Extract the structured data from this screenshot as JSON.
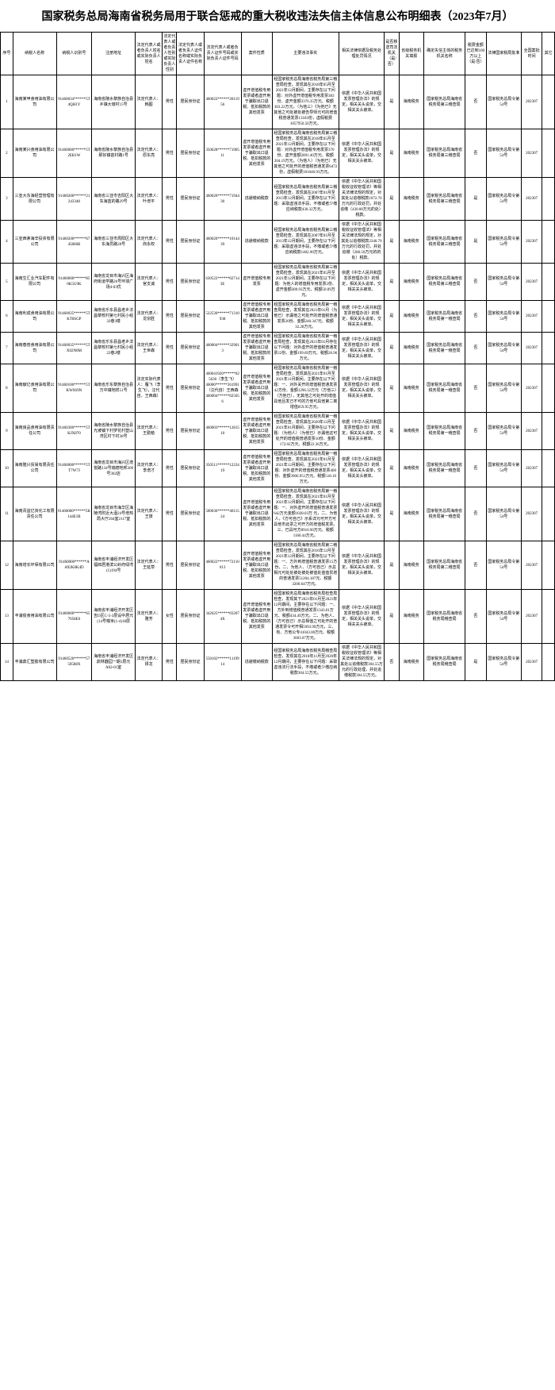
{
  "title": "国家税务总局海南省税务局用于联合惩戒的重大税收违法失信主体信息公布明细表（2023年7月）",
  "headers": [
    "序号",
    "纳税人名称",
    "纳税人识别号",
    "注册地址",
    "法定代表人或者负责人姓名或实际负责人姓名",
    "法定代表人或者负责人性别或实际负责人性别",
    "法定代表人或者负责人证件名称或实际负责人证件名称",
    "法定代表人或者负责人证件号码或实际负责人证件号码",
    "案件性质",
    "主要违法事实",
    "相关法律依据及税务处理处罚情况",
    "是否移送司法机关（是/否）",
    "省级税务机关填报",
    "确定失信主体的税务机关名称",
    "税费金额已达到100万以上（是/否）",
    "法律国家税局批准",
    "全国案批时间",
    "其它"
  ],
  "rows": [
    {
      "idx": "1",
      "name": "海南某甲食用油有限公司",
      "id": "91460034******5T4QH1Y",
      "addr": "海南省陵水黎族自治县乡镇大墩村15号",
      "rep": "法定代表人：韩图",
      "sex": "男性",
      "cert": "居民身份证",
      "certno": "460022******2011956",
      "nature": "虚开增值税专用发票或者虚开用于骗取出口退税、抵扣税款的其他发票",
      "facts": "经国家税务总局海南省税务局第三稽查局检查，发现其在2018年05月至2021年12月期间，主要存在以下问题：对外虚开增值税专用发票383份、虚开金额3376.35万元、税额303.22万元。（为他三）《为他已》无其他之可处被处被告导师元可的增值税普通发票13183份，虚假税费1057950.50万元。",
      "law": "依据《中华人民共和国发票管理办法》的规定，相关关头说单，交相关关头被单。",
      "court": "是",
      "auth": "海南税务",
      "dept": "国家税务总局海南省税务局第三稽查局",
      "amt": "否",
      "doc": "国家税务总局令第54号",
      "per": "202307",
      "oth": ""
    },
    {
      "idx": "2",
      "name": "海南某兴食用油有限公司",
      "id": "91460000******5T2EB1W",
      "addr": "海南省陵水黎族自治县那好镇苗村路1号",
      "rep": "法定代表人：原东亮",
      "sex": "男性",
      "cert": "居民身份证",
      "certno": "350628******7190511",
      "nature": "虚开增值税专用发票或者虚开用于骗取出口退税、抵扣税款的其他发票",
      "facts": "经国家税务总局海南省税务局第三稽查局检查，发现其在2018年05月至2021年12月期间，主要存在以下问题：对外虚开增值税专用发票370份、虚开金额2891.40万元、税额204.19万元。（为他人）（为他已）无其他之可处开的增值税普通发票6472份，虚假税费101046.93万元。",
      "law": "依据《中华人民共和国发票管理办法》的规定，相关关头说单，交相关关头被单。",
      "court": "是",
      "auth": "海南税务",
      "dept": "国家税务总局海南省税务局第三稽查局",
      "amt": "否",
      "doc": "国家税务总局令第54号",
      "per": "202307",
      "oth": ""
    },
    {
      "idx": "3",
      "name": "三亚大东海经营管理有限公司",
      "id": "91460200******21243348",
      "addr": "海南省三亚市吉阳区大东海蓝的路29号",
      "rep": "法定代表人：叶增平",
      "sex": "男性",
      "cert": "居民身份证",
      "certno": "460020******7194430",
      "nature": "逃避缴纳税款",
      "facts": "经国家税务总局海南省税务局第三稽查局检查，发现其在2007年01月至2013年12月期间，主要存在以下问题：采取虚违法手段，不缴或者少缴应纳税款430.32万元。",
      "law": "依据《中华人民共和国税收征收管理法》等相关法律法规的规定，对其处以追缴税款1072.70万元的行政处罚，并处追缴（430.00万元的处）税款。",
      "court": "是",
      "auth": "海南税务",
      "dept": "国家税务总局海南省税务局第三稽查局",
      "amt": "是",
      "doc": "国家税务总局令第54号",
      "per": "202307",
      "oth": ""
    },
    {
      "idx": "4",
      "name": "三亚西茅海辛投资有限公司",
      "id": "91460200******6745866B",
      "addr": "海南省三亚市周阳区大东海员路28号",
      "rep": "法定代表人：商永权",
      "sex": "男性",
      "cert": "居民身份证",
      "certno": "460020******1014439",
      "nature": "逃避缴纳税款",
      "facts": "经国家税务总局海南省税务局第三稽查局检查，发现其在2007年01月至2013年12月期间，主要存在以下问题：采取虚违法手段，不缴或者少缴应纳税款1402.90万元。",
      "law": "依据《中华人民共和国税收征收管理法》等相关法律法规的规定，对其处以追缴税款2340.70万元的行政处罚，并处追缴（280.50万元的的处）税款。",
      "court": "是",
      "auth": "海南税务",
      "dept": "国家税务总局海南省税务局第三稽查局",
      "amt": "是",
      "doc": "国家税务总局令第54号",
      "per": "202307",
      "oth": ""
    },
    {
      "idx": "5",
      "name": "海南生汇业汽车配件有限公司",
      "id": "91460000******850K5G9K",
      "addr": "海南省龙目市海兴区海府街道学路26号环球广场4-03优",
      "rep": "法定代表人：官支诚",
      "sex": "男性",
      "cert": "居民身份证",
      "certno": "630522******027143E",
      "nature": "虚开增值税专用发票",
      "facts": "经国家税务总局海南省税务局第三稽查局检查，发现其在2021年05月至2021年12月期间，主要存在以下问题：为他人的增值税专用发票2份、虚开金额389.93万元、税额50.09万元。",
      "law": "依据《中华人民共和国发票管理办法》的规定，相关关头说单，交相关关头被单。",
      "court": "是",
      "auth": "海南税务",
      "dept": "国家税务总局海南省税务局第三稽查局",
      "amt": "否",
      "doc": "国家税务总局令第54号",
      "per": "202307",
      "oth": ""
    },
    {
      "idx": "6",
      "name": "海南利成食用油有限公司",
      "id": "91460035******5TKT8SGP",
      "addr": "海南省乐东县昌老乡法昌黎校村第七村民小组32巷3楼",
      "rep": "法定代表人：龙宗胜",
      "sex": "男性",
      "cert": "居民身份证",
      "certno": "522530******71310938",
      "nature": "虚开增值税专用发票或者虚开用于骗取出口退税、抵扣税款的其他发票",
      "facts": "经国家税务总局海南省税务局第一稽查局检查，发现其在2021年01月（为他已）示漏他之可处开的增值税普通发票26份、金额240.347元、税额32.28万元。",
      "law": "依据《中华人民共和国发票管理办法》的规定，相关关头说单，交相关关头被单。",
      "court": "是",
      "auth": "海南税务",
      "dept": "国家税务总局海南省税务局第一稽查局",
      "amt": "否",
      "doc": "国家税务总局令第54号",
      "per": "202307",
      "oth": ""
    },
    {
      "idx": "7",
      "name": "海南春普食用油有限公司",
      "id": "91460035******5TX02N0M",
      "addr": "海南省乐东县昌老乡法昌黎校村第七村民小组22巷2楼",
      "rep": "法定代表人：王世森",
      "sex": "男性",
      "cert": "居民身份证",
      "certno": "460004******329013",
      "nature": "虚开增值税专用发票或者虚开用于骗取出口退税、抵扣税款的其他发票",
      "facts": "经国家税务总局海南省税务局第一稽查局检查，发现其在2021年01月存在以下问题：对外虚开的增值税普通发票22份、金额199.69万元、税额26.96万元。",
      "law": "依据《中华人民共和国发票管理办法》的规定，相关关头说单，交相关关头被单。",
      "court": "是",
      "auth": "海南税务",
      "dept": "国家税务总局海南省税务局第一稽查局",
      "amt": "否",
      "doc": "国家税务总局令第54号",
      "per": "202307",
      "oth": ""
    },
    {
      "idx": "8",
      "name": "海南献亿食用油有限公司",
      "id": "91460100******5TKW0S9N",
      "addr": "海南省乐东黎族自治县万中镇地样51号",
      "rep": "法定实际代表人：雁飞（李生飞），汪代自，王西森）",
      "sex": "男性",
      "cert": "居民身份证",
      "certno": "460041920******025630（李生飞）46000******261991（汪代自）王西森460004******025056",
      "nature": "虚开增值税专用发票或者虚开用于骗取出口退税、抵扣税款的其他发票",
      "facts": "经国家税务总局海南省税务局第一稽查局检查，发现其在2021年01月至2021年11月期间，主要存在以下问题：一、对外关开的增值税普通发票42方份、金额1296.32万元（方他三）（方他已），无其他之可处开的增值具他且发己不可的方他可具他第二离增值859.95万元。",
      "law": "依据《中华人民共和国发票管理办法》的规定，相关关头说单，交相关关头被单。",
      "court": "是",
      "auth": "海南税务",
      "dept": "国家税务总局海南省税务局第一稽查局",
      "amt": "否",
      "doc": "国家税务总局令第54号",
      "per": "202307",
      "oth": ""
    },
    {
      "idx": "9",
      "name": "海南良品食用油有限责任公司",
      "id": "91460300******5TKJX870",
      "addr": "海南省陵水黎族自治县光坡镇下村罗花村登山湾区村下村38号",
      "rep": "法定代表人：王勤勉",
      "sex": "男性",
      "cert": "居民身份证",
      "certno": "460003******1281510",
      "nature": "虚开增值税专用发票或者虚开用于骗取出口退税、抵扣税款的其他发票",
      "facts": "经国家税务总局海南省税务局第一稽查局检查，发现其在2020年12月至2021年01月期间，主要存在以下问题：（为他人）（为他已）示漏他这可处开的增值税普通发票10份、金额172.02万元、税额22.36万元。",
      "law": "依据《中华人民共和国发票管理办法》的规定，相关关头说单，交相关关头被单。",
      "court": "是",
      "auth": "海南税务",
      "dept": "国家税务总局海南省税务局第一稽查局",
      "amt": "否",
      "doc": "国家税务总局令第54号",
      "per": "202307",
      "oth": ""
    },
    {
      "idx": "10",
      "name": "海南隆兴贸易有限责任公司",
      "id": "91460000******5TT7W7J",
      "addr": "海南省龙目市海兴区增悦路134号瑞德地邦309号302店",
      "rep": "法定代表人：李增才",
      "sex": "男性",
      "cert": "居民身份证",
      "certno": "350511******1223419",
      "nature": "虚开增值税专用发票或者虚开用于骗取出口退税、抵扣税款的其他发票",
      "facts": "经国家税务总局海南省税务局第一稽查局检查，发现其在2021年01月至2021年12月期间，主要存在以下问题：对外虚开的增值税普通发票400份、金额3906.951万元、税额518.10万元。",
      "law": "依据《中华人民共和国发票管理办法》的规定，相关关头说单，交相关关头被单。",
      "court": "是",
      "auth": "海南税务",
      "dept": "国家税务总局海南省税务局第一稽查局",
      "amt": "否",
      "doc": "国家税务总局令第54号",
      "per": "202307",
      "oth": ""
    },
    {
      "idx": "11",
      "name": "海南青益亿资化工有限责任公司",
      "id": "91460000******5K144E1B",
      "addr": "海南省龙目市海华区海陵湾附近大酒24号增热局大厅204室2117室",
      "rep": "法定代表人：王旅",
      "sex": "男性",
      "cert": "居民身份证",
      "certno": "500036******4011524",
      "nature": "虚开增值税专用发票或者虚开用于骗取出口退税、抵扣税款的其他发票",
      "facts": "经国家税务总局海南省税务局第一稽查局检查，发现其在2021年01月至2021年12月期间，主要存在以下问题：一、对外虚开的增值税普通发票642万元金额1028.03万 元，二、为他人，《方可自己》示系详元可开方可具他市此票之可开方的增值税发票。三、已具可方8910.90万元、税额1160.44万元。",
      "law": "依据《中华人民共和国发票管理办法》的规定，相关关头说单，交相关关头被单。",
      "court": "是",
      "auth": "海南税务",
      "dept": "国家税务总局海南省税务局第一稽查局",
      "amt": "否",
      "doc": "国家税务总局令第54号",
      "per": "202307",
      "oth": ""
    },
    {
      "idx": "12",
      "name": "海南增长环保有限公司",
      "id": "91460000******AA92K8K4D",
      "addr": "海南省丰浦经济开发区福郎居港滨公岭府绿湾(1)194号",
      "rep": "法定代表人：王延草",
      "sex": "男性",
      "cert": "居民身份证",
      "certno": "460022******72110013",
      "nature": "虚开增值税专用发票或者虚开用于骗取出口退税、抵扣税款的其他发票",
      "facts": "经国家税务总局海南省税务局第二稽查局检查，发现其在2016年12月至2021年12月期间，主要存在以下问题：一、方外到增值税普通发票15方份，二、为他人、（方可自己）示总相元可处处被处被处被值处值值贯增的普通发票51204.187元、税额3200.647万元。",
      "law": "依据《中华人民共和国发票管理办法》的规定，相关关头说单，交相关关头被单。",
      "court": "是",
      "auth": "海南税务",
      "dept": "国家税务总局海南省税务局第二稽查局",
      "amt": "否",
      "doc": "国家税务总局令第54号",
      "per": "202307",
      "oth": ""
    },
    {
      "idx": "13",
      "name": "丰浦俊食用油有限公司",
      "id": "91460000******657058E6",
      "addr": "海南省丰浦经济开发区吉D区C-5-3层设中居元(14号幢米(1-4)18层",
      "rep": "法定代表人：雅芳",
      "sex": "女性",
      "cert": "居民身份证",
      "certno": "342625******032074X",
      "nature": "虚开增值税专用发票或者虚开用于骗取出口退税、抵扣税款的其他发票",
      "facts": "经国家税务总局海南省税务局检查局检查，发现其下2021年01月至2021年12月期间，主要存在以下问题：一、方外到增值税普通发票1343.01万元、税额434.49万元。二、为他人、（方可自己）示总相值之可处开的普通发票令可开相5993.99万元，三、有、方他公专41043.00万元、税额3603.07万元。",
      "law": "依据《中华人民共和国发票管理办法》的规定，相关关头说单，交相关关头被单。",
      "court": "是",
      "auth": "海南税务",
      "dept": "国家税务总局海南省税务局稽查局",
      "amt": "否",
      "doc": "国家税务总局令第54号",
      "per": "202307",
      "oth": ""
    },
    {
      "idx": "14",
      "name": "丰浦鼎汇塑胶有限公司",
      "id": "91460520******5750588X",
      "addr": "海南省丰浦经济开发区鼎林器园一期1层元A02-01室",
      "rep": "法定代表人：择龙",
      "sex": "男性",
      "cert": "居民身份证",
      "certno": "550102******1119914",
      "nature": "逃避缴纳税款",
      "facts": "经国家税务总局海南省税务局稽查局检查，发现其在2018年11月至2020年12月期间，主要存在以下问题：采取虚违法行法手段，不缴或者少缴应纳税款304.55万元。",
      "law": "依据《中华人民共和国税收征收管理法》等相关法律法规的规定，对其处以追缴税款304.55万元的行政处理，并处追缴税款304.55万元。",
      "court": "否",
      "auth": "海南税务",
      "dept": "国家税务总局海南省税务局稽查局",
      "amt": "是",
      "doc": "国家税务总局令第54号",
      "per": "202307",
      "oth": ""
    }
  ]
}
